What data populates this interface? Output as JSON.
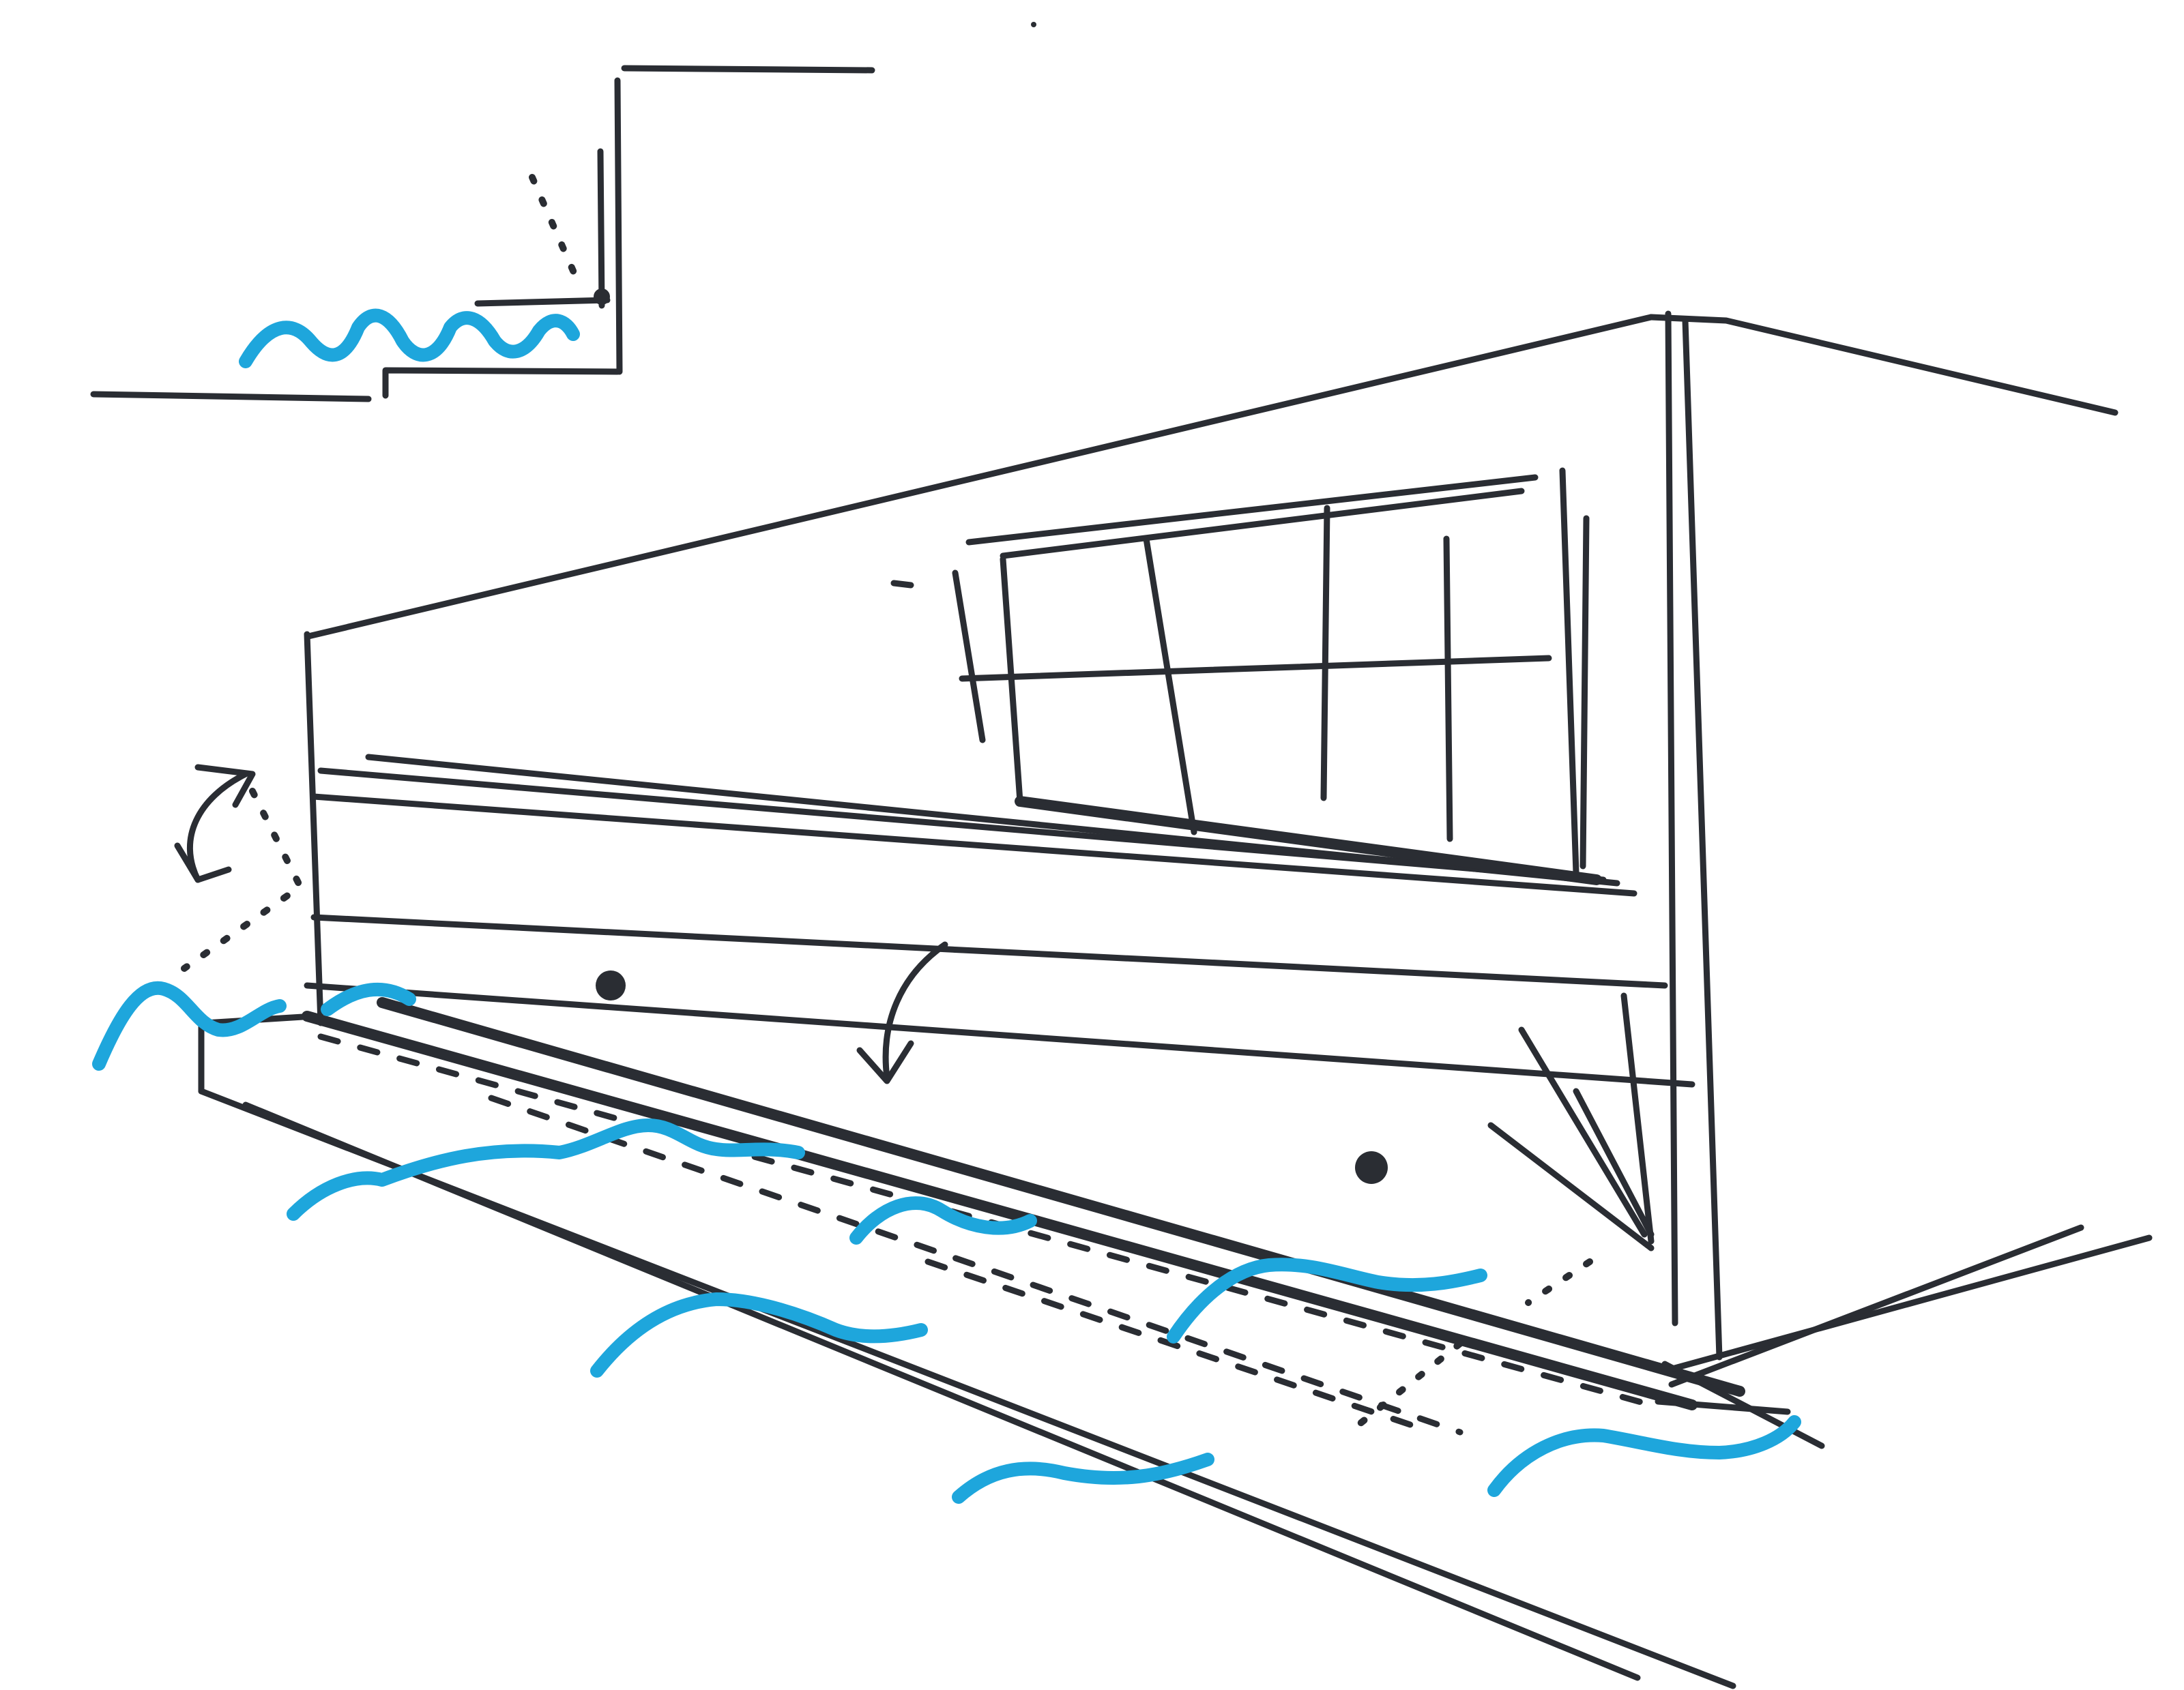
{
  "sketch": {
    "subject": "",
    "colors": {
      "ink": "#2a2d33",
      "water": "#1ea6dc",
      "paper": "#ffffff"
    }
  }
}
